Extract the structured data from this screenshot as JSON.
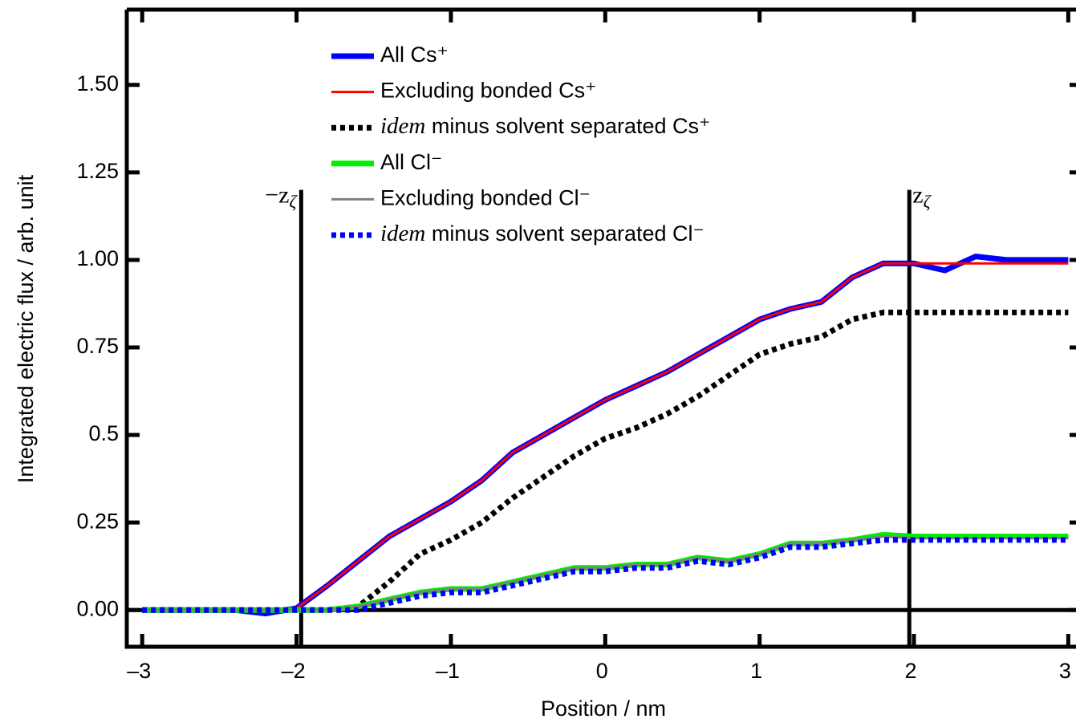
{
  "chart_data": {
    "type": "line",
    "x_label": "Position / nm",
    "y_label": "Integrated electric flux / arb. unit",
    "x": [
      -3.0,
      -2.8,
      -2.6,
      -2.4,
      -2.2,
      -2.0,
      -1.8,
      -1.6,
      -1.4,
      -1.2,
      -1.0,
      -0.8,
      -0.6,
      -0.4,
      -0.2,
      0.0,
      0.2,
      0.4,
      0.6,
      0.8,
      1.0,
      1.2,
      1.4,
      1.6,
      1.8,
      2.0,
      2.2,
      2.4,
      2.6,
      2.8,
      3.0
    ],
    "series": [
      {
        "name": "All Cs⁺",
        "color": "#0000ff",
        "style": "solid",
        "width": 7,
        "values": [
          0,
          0,
          0,
          0,
          -0.01,
          0.005,
          0.07,
          0.14,
          0.21,
          0.26,
          0.31,
          0.37,
          0.45,
          0.5,
          0.55,
          0.6,
          0.64,
          0.68,
          0.73,
          0.78,
          0.83,
          0.86,
          0.88,
          0.95,
          0.99,
          0.99,
          0.97,
          1.01,
          1.0,
          1.0,
          1.0
        ]
      },
      {
        "name": "Excluding bonded Cs⁺",
        "color": "#ff0000",
        "style": "solid",
        "width": 3,
        "values": [
          0,
          0,
          0,
          0,
          0,
          0.005,
          0.07,
          0.14,
          0.21,
          0.26,
          0.31,
          0.37,
          0.45,
          0.5,
          0.55,
          0.6,
          0.64,
          0.68,
          0.73,
          0.78,
          0.83,
          0.86,
          0.88,
          0.95,
          0.99,
          0.99,
          0.99,
          0.99,
          0.99,
          0.99,
          0.99
        ]
      },
      {
        "name": "idem minus solvent separated Cs⁺",
        "color": "#000000",
        "style": "dotted",
        "width": 7,
        "values": [
          0,
          0,
          0,
          0,
          0,
          0,
          0,
          0.01,
          0.08,
          0.16,
          0.2,
          0.25,
          0.32,
          0.38,
          0.44,
          0.49,
          0.52,
          0.56,
          0.61,
          0.67,
          0.73,
          0.76,
          0.78,
          0.83,
          0.85,
          0.85,
          0.85,
          0.85,
          0.85,
          0.85,
          0.85
        ]
      },
      {
        "name": "All Cl⁻",
        "color": "#00ee00",
        "style": "solid",
        "width": 7,
        "values": [
          0,
          0,
          0,
          0,
          0,
          0,
          0,
          0.01,
          0.03,
          0.05,
          0.06,
          0.06,
          0.08,
          0.1,
          0.12,
          0.12,
          0.13,
          0.13,
          0.15,
          0.14,
          0.16,
          0.19,
          0.19,
          0.2,
          0.215,
          0.21,
          0.21,
          0.21,
          0.21,
          0.21,
          0.21
        ]
      },
      {
        "name": "Excluding bonded Cl⁻",
        "color": "#808080",
        "style": "solid",
        "width": 3,
        "values": [
          0,
          0,
          0,
          0,
          0,
          0,
          0,
          0.01,
          0.03,
          0.05,
          0.06,
          0.06,
          0.08,
          0.1,
          0.12,
          0.12,
          0.13,
          0.13,
          0.15,
          0.14,
          0.16,
          0.19,
          0.19,
          0.2,
          0.21,
          0.205,
          0.205,
          0.205,
          0.205,
          0.205,
          0.205
        ]
      },
      {
        "name": "idem minus solvent separated Cl⁻",
        "color": "#0000ff",
        "style": "dotted",
        "width": 7,
        "values": [
          0,
          0,
          0,
          0,
          0,
          0,
          0,
          0,
          0.02,
          0.04,
          0.05,
          0.05,
          0.07,
          0.09,
          0.11,
          0.11,
          0.12,
          0.12,
          0.14,
          0.13,
          0.15,
          0.18,
          0.18,
          0.19,
          0.2,
          0.2,
          0.2,
          0.2,
          0.2,
          0.2,
          0.2
        ]
      }
    ],
    "xlim": [
      -3.1,
      3.05
    ],
    "ylim": [
      -0.105,
      1.715
    ],
    "xticks": [
      {
        "value": -3,
        "label": "–3"
      },
      {
        "value": -2,
        "label": "–2"
      },
      {
        "value": -1,
        "label": "–1"
      },
      0,
      1,
      2,
      3
    ],
    "yticks": [
      {
        "value": 0,
        "label": "0.00"
      },
      0.25,
      0.5,
      0.75,
      {
        "value": 1,
        "label": "1.00"
      },
      1.25,
      {
        "value": 1.5,
        "label": "1.50"
      }
    ],
    "vlines": [
      {
        "value": -1.97,
        "label": "−z"
      },
      {
        "value": 1.97,
        "label": "z"
      }
    ],
    "vline_subscript": "ζ",
    "hline": 0
  }
}
